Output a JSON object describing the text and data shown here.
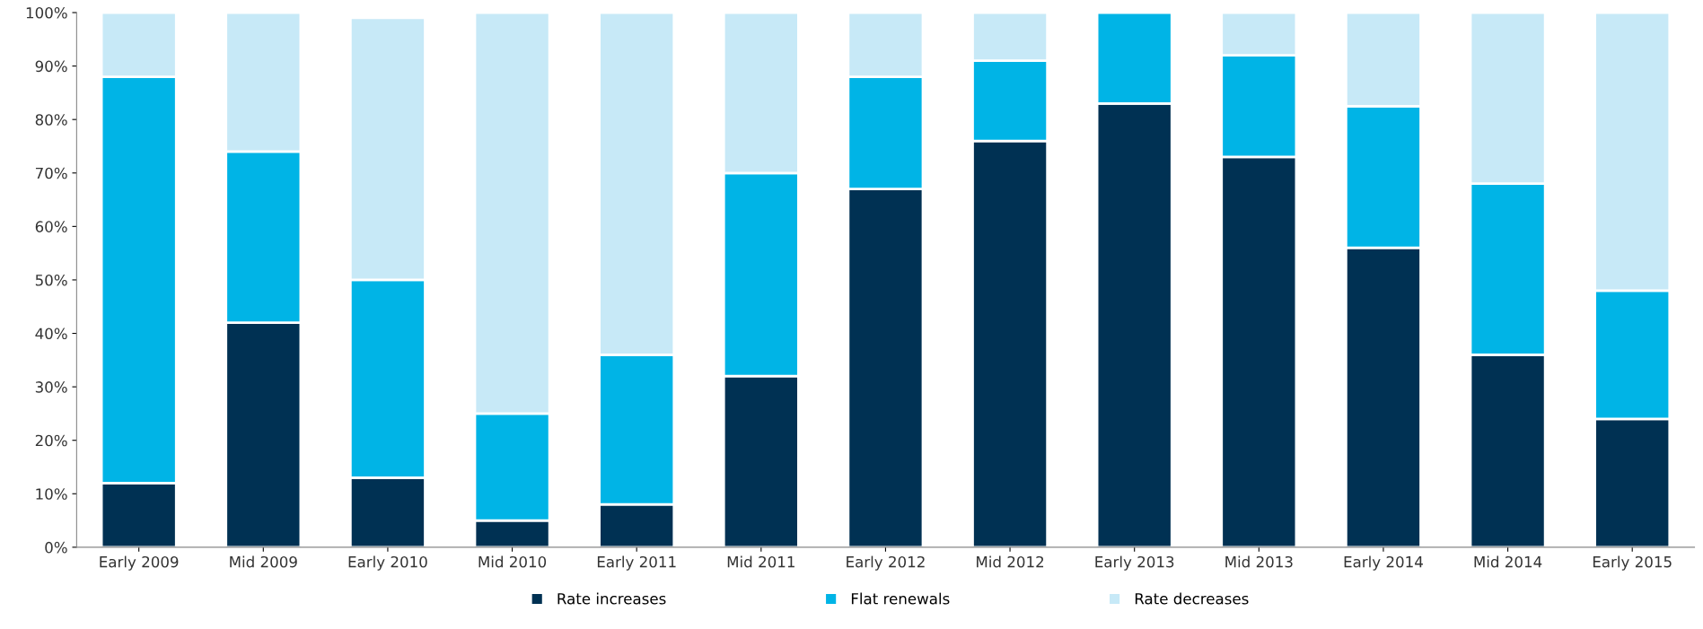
{
  "chart_data": {
    "type": "bar",
    "stacked": true,
    "categories": [
      "Early 2009",
      "Mid 2009",
      "Early 2010",
      "Mid 2010",
      "Early 2011",
      "Mid 2011",
      "Early 2012",
      "Mid 2012",
      "Early 2013",
      "Mid 2013",
      "Early 2014",
      "Mid 2014",
      "Early 2015"
    ],
    "series": [
      {
        "name": "Rate increases",
        "color": "#003153",
        "values": [
          12,
          42,
          13,
          5,
          8,
          32,
          67,
          76,
          83,
          73,
          56,
          36,
          24
        ]
      },
      {
        "name": "Flat renewals",
        "color": "#00b4e6",
        "values": [
          76,
          32,
          37,
          20,
          28,
          38,
          21,
          15,
          17,
          19,
          26.5,
          32,
          24
        ]
      },
      {
        "name": "Rate decreases",
        "color": "#c7e9f7",
        "values": [
          12,
          26,
          49,
          75,
          64,
          30,
          12,
          9,
          0,
          8,
          17.5,
          32,
          52
        ]
      }
    ],
    "ylim": [
      0,
      100
    ],
    "yticks": [
      {
        "value": 0,
        "label": "0%"
      },
      {
        "value": 10,
        "label": "10%"
      },
      {
        "value": 20,
        "label": "20%"
      },
      {
        "value": 30,
        "label": "30%"
      },
      {
        "value": 40,
        "label": "40%"
      },
      {
        "value": 50,
        "label": "50%"
      },
      {
        "value": 60,
        "label": "60%"
      },
      {
        "value": 70,
        "label": "70%"
      },
      {
        "value": 80,
        "label": "80%"
      },
      {
        "value": 90,
        "label": "90%"
      },
      {
        "value": 100,
        "label": "100%"
      }
    ],
    "grid": false,
    "legend": "bottom"
  }
}
